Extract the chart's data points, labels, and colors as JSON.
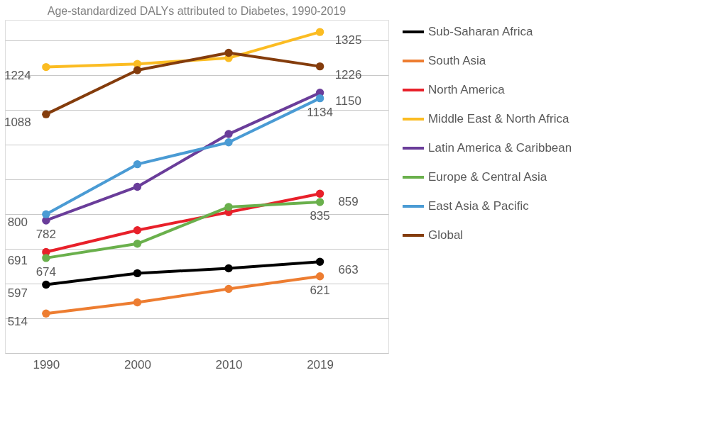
{
  "chart_data": {
    "type": "line",
    "title": "Age-standardized DALYs attributed to Diabetes, 1990-2019",
    "categories": [
      "1990",
      "2000",
      "2010",
      "2019"
    ],
    "series": [
      {
        "name": "Sub-Saharan Africa",
        "color": "#000000",
        "values": [
          597,
          630,
          644,
          663
        ],
        "value_labels": [
          "597",
          null,
          null,
          "663"
        ]
      },
      {
        "name": "South Asia",
        "color": "#ed7d31",
        "values": [
          514,
          546,
          585,
          621
        ],
        "value_labels": [
          "514",
          null,
          null,
          "621"
        ]
      },
      {
        "name": "North America",
        "color": "#e8202a",
        "values": [
          691,
          754,
          806,
          859
        ],
        "value_labels": [
          "691",
          null,
          null,
          "859"
        ]
      },
      {
        "name": "Middle East & North Africa",
        "color": "#fbbc22",
        "values": [
          1224,
          1233,
          1250,
          1325
        ],
        "value_labels": [
          "1224",
          null,
          null,
          "1325"
        ]
      },
      {
        "name": "Latin America & Caribbean",
        "color": "#6a3d9a",
        "values": [
          782,
          879,
          1031,
          1150
        ],
        "value_labels": [
          "782",
          null,
          null,
          "1150"
        ]
      },
      {
        "name": "Europe & Central Asia",
        "color": "#6ab04c",
        "values": [
          674,
          715,
          821,
          835
        ],
        "value_labels": [
          "674",
          null,
          null,
          "835"
        ]
      },
      {
        "name": "East Asia & Pacific",
        "color": "#4a9bd4",
        "values": [
          800,
          944,
          1007,
          1134
        ],
        "value_labels": [
          "800",
          null,
          null,
          "1134"
        ]
      },
      {
        "name": "Global",
        "color": "#843c0c",
        "values": [
          1088,
          1215,
          1265,
          1226
        ],
        "value_labels": [
          "1088",
          null,
          null,
          "1226"
        ]
      }
    ],
    "ylim": [
      400,
      1360
    ],
    "yticks": [
      {
        "value": 400,
        "label": null
      },
      {
        "value": 500,
        "label": null
      },
      {
        "value": 600,
        "label": null
      },
      {
        "value": 700,
        "label": null
      },
      {
        "value": 800,
        "label": null
      },
      {
        "value": 900,
        "label": null
      },
      {
        "value": 1000,
        "label": null
      },
      {
        "value": 1100,
        "label": null
      },
      {
        "value": 1200,
        "label": null
      },
      {
        "value": 1300,
        "label": null
      }
    ],
    "tick_labels": "x",
    "grid": "y",
    "legend": "right",
    "marker": "circle",
    "line_style": "solid"
  }
}
